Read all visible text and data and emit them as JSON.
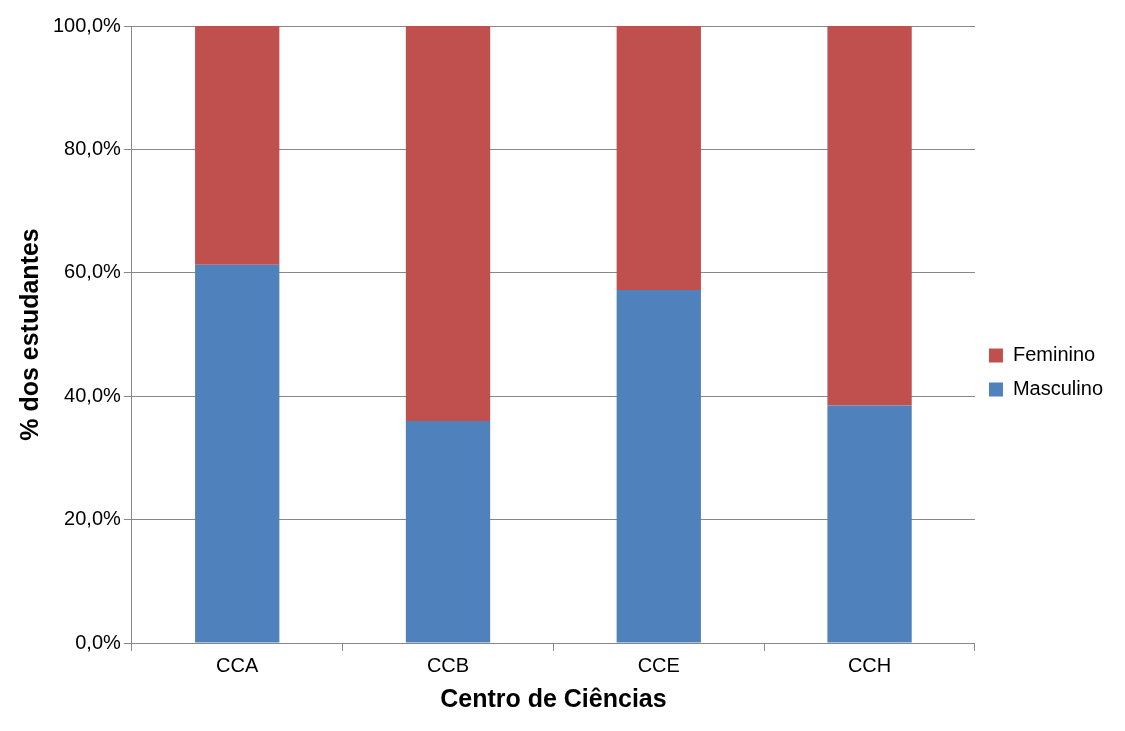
{
  "chart_data": {
    "type": "bar",
    "stacked": true,
    "xlabel": "Centro de Ciências",
    "ylabel": "% dos estudantes",
    "categories": [
      "CCA",
      "CCB",
      "CCE",
      "CCH"
    ],
    "series": [
      {
        "name": "Masculino",
        "color": "#4f81bd",
        "values": [
          61.3,
          36.0,
          57.2,
          38.5
        ]
      },
      {
        "name": "Feminino",
        "color": "#c0504d",
        "values": [
          38.7,
          64.0,
          42.8,
          61.5
        ]
      }
    ],
    "ylim": [
      0,
      100
    ],
    "yticks": [
      {
        "value": 0,
        "label": "0,0%"
      },
      {
        "value": 20,
        "label": "20,0%"
      },
      {
        "value": 40,
        "label": "40,0%"
      },
      {
        "value": 60,
        "label": "60,0%"
      },
      {
        "value": 80,
        "label": "80,0%"
      },
      {
        "value": 100,
        "label": "100,0%"
      }
    ],
    "grid": "y",
    "legend": "right"
  }
}
